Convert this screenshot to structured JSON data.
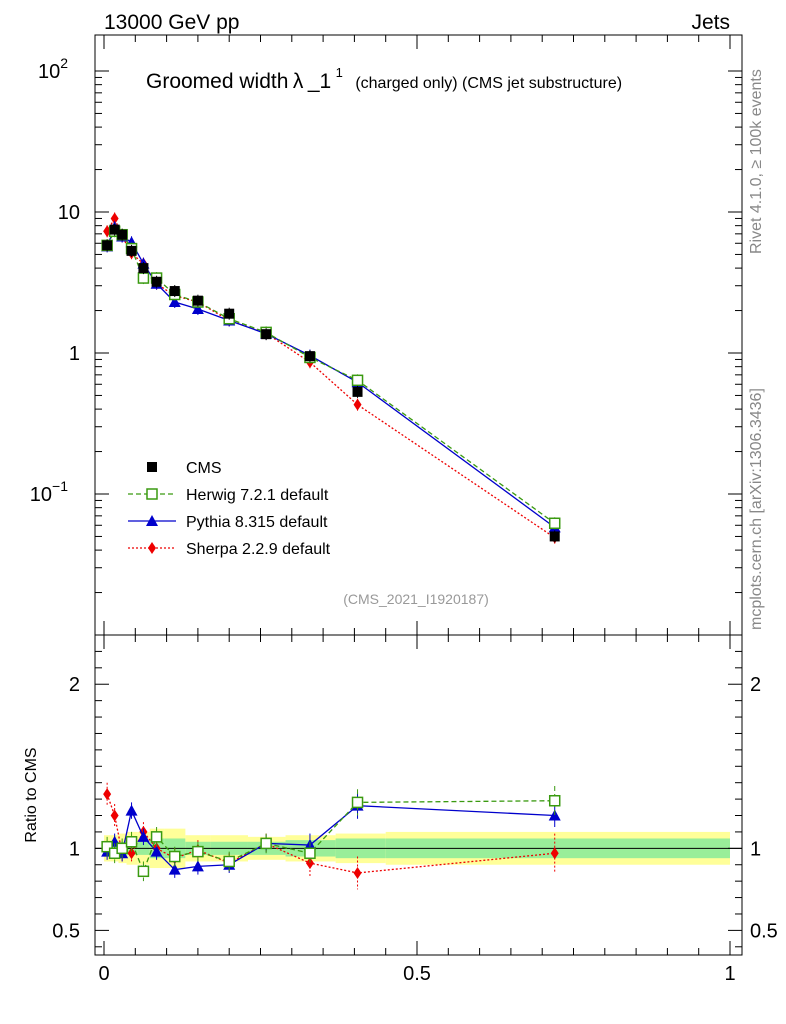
{
  "header": {
    "left": "13000 GeV pp",
    "right": "Jets"
  },
  "title": {
    "main": "Groomed width",
    "lambda": "λ",
    "suffix": "_1",
    "sup": "1",
    "paren": "(charged only) (CMS jet substructure)"
  },
  "side_texts": {
    "rivet": "Rivet 4.1.0, ≥ 100k events",
    "mcplots": "mcplots.cern.ch [arXiv:1306.3436]"
  },
  "analysis_id": "(CMS_2021_I1920187)",
  "ratio_ylabel": "Ratio to CMS",
  "colors": {
    "cms": "#000000",
    "herwig": "#3a9a10",
    "pythia": "#0000cc",
    "sherpa": "#ee0000",
    "band_inner": "#99ee99",
    "band_outer": "#ffff99"
  },
  "chart_data": {
    "type": "scatter",
    "title": "Groomed width λ_1^1 (charged only) (CMS jet substructure)",
    "xlim": [
      0,
      1
    ],
    "main": {
      "yscale": "log",
      "ylim": [
        0.01,
        180
      ],
      "yticks": [
        {
          "v": 0.1,
          "base": "10",
          "exp": "−1"
        },
        {
          "v": 1,
          "base": "1",
          "exp": ""
        },
        {
          "v": 10,
          "base": "10",
          "exp": ""
        },
        {
          "v": 100,
          "base": "10",
          "exp": "2"
        }
      ]
    },
    "ratio": {
      "ylim": [
        0.35,
        2.3
      ],
      "yticks": [
        0.5,
        1,
        2
      ],
      "ytick_labels": [
        "0.5",
        "1",
        "2"
      ]
    },
    "xticks": [
      0,
      0.5,
      1
    ],
    "xtick_labels": [
      "0",
      "0.5",
      "1"
    ],
    "x": [
      0.005,
      0.017,
      0.029,
      0.044,
      0.063,
      0.084,
      0.113,
      0.15,
      0.2,
      0.259,
      0.329,
      0.405,
      0.72
    ],
    "bin_edges": [
      0,
      0.01,
      0.023,
      0.036,
      0.053,
      0.073,
      0.096,
      0.13,
      0.17,
      0.23,
      0.29,
      0.37,
      0.45,
      1.0
    ],
    "series": [
      {
        "name": "CMS",
        "key": "cms",
        "marker": "square-filled",
        "line": "none",
        "values": [
          5.8,
          7.5,
          6.9,
          5.3,
          4.0,
          3.2,
          2.75,
          2.35,
          1.9,
          1.36,
          0.95,
          0.53,
          0.05
        ],
        "ratio": [
          1,
          1,
          1,
          1,
          1,
          1,
          1,
          1,
          1,
          1,
          1,
          1,
          1
        ],
        "ratio_err": [
          0.04,
          0.04,
          0.04,
          0.04,
          0.04,
          0.04,
          0.04,
          0.04,
          0.04,
          0.04,
          0.04,
          0.04,
          0.04
        ]
      },
      {
        "name": "Herwig 7.2.1 default",
        "key": "herwig",
        "marker": "square-open",
        "line": "dashed",
        "values": [
          5.8,
          7.3,
          6.9,
          5.5,
          3.4,
          3.4,
          2.6,
          2.3,
          1.75,
          1.4,
          0.93,
          0.64,
          0.062
        ],
        "ratio": [
          1.01,
          0.97,
          1.0,
          1.04,
          0.86,
          1.07,
          0.95,
          0.98,
          0.92,
          1.03,
          0.97,
          1.28,
          1.29
        ],
        "ratio_err": [
          0.06,
          0.06,
          0.06,
          0.06,
          0.06,
          0.06,
          0.06,
          0.06,
          0.06,
          0.06,
          0.07,
          0.08,
          0.09
        ]
      },
      {
        "name": "Pythia 8.315 default",
        "key": "pythia",
        "marker": "triangle",
        "line": "solid",
        "values": [
          5.7,
          7.8,
          6.7,
          6.1,
          4.3,
          3.1,
          2.3,
          2.05,
          1.7,
          1.37,
          0.96,
          0.62,
          0.058
        ],
        "ratio": [
          0.98,
          1.04,
          0.97,
          1.23,
          1.07,
          0.98,
          0.87,
          0.89,
          0.9,
          1.03,
          1.02,
          1.26,
          1.2
        ],
        "ratio_err": [
          0.05,
          0.05,
          0.05,
          0.05,
          0.05,
          0.05,
          0.05,
          0.05,
          0.05,
          0.05,
          0.07,
          0.08,
          0.07
        ]
      },
      {
        "name": "Sherpa 2.2.9 default",
        "key": "sherpa",
        "marker": "diamond",
        "line": "dotted",
        "values": [
          7.3,
          9.0,
          6.7,
          5.1,
          4.3,
          3.1,
          2.55,
          2.3,
          1.7,
          1.38,
          0.86,
          0.43,
          0.049
        ],
        "ratio": [
          1.33,
          1.2,
          0.97,
          0.97,
          1.1,
          1.0,
          0.94,
          0.99,
          0.91,
          1.03,
          0.91,
          0.85,
          0.97
        ],
        "ratio_err": [
          0.07,
          0.07,
          0.06,
          0.06,
          0.06,
          0.06,
          0.06,
          0.06,
          0.06,
          0.06,
          0.08,
          0.1,
          0.12
        ]
      }
    ],
    "band": {
      "inner": [
        0.04,
        0.04,
        0.04,
        0.04,
        0.04,
        0.06,
        0.06,
        0.04,
        0.04,
        0.04,
        0.05,
        0.06,
        0.06
      ],
      "outer": [
        0.08,
        0.08,
        0.09,
        0.1,
        0.1,
        0.12,
        0.12,
        0.08,
        0.08,
        0.07,
        0.08,
        0.09,
        0.1
      ]
    }
  }
}
